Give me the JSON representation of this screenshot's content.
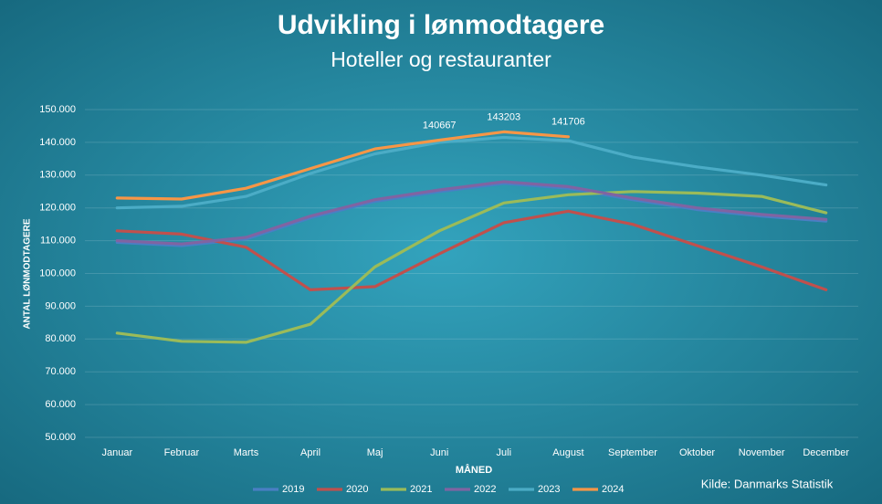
{
  "chart_data": {
    "type": "line",
    "title": "Udvikling i lønmodtagere",
    "subtitle": "Hoteller og restauranter",
    "x_label": "MÅNED",
    "y_label": "ANTAL LØNMODTAGERE",
    "source": "Kilde: Danmarks Statistik",
    "categories": [
      "Januar",
      "Februar",
      "Marts",
      "April",
      "Maj",
      "Juni",
      "Juli",
      "August",
      "September",
      "Oktober",
      "November",
      "December"
    ],
    "series": [
      {
        "name": "2019",
        "color": "#4a7fc4",
        "values": [
          109500,
          108500,
          110500,
          117000,
          122000,
          125000,
          127500,
          126000,
          122500,
          119500,
          117500,
          116000
        ]
      },
      {
        "name": "2020",
        "color": "#c0504d",
        "values": [
          113000,
          112000,
          108000,
          95000,
          96000,
          106000,
          115500,
          119000,
          115000,
          108500,
          102000,
          95000
        ]
      },
      {
        "name": "2021",
        "color": "#9bbb59",
        "values": [
          81800,
          79300,
          79000,
          84500,
          102000,
          113000,
          121500,
          124000,
          125000,
          124500,
          123500,
          118500
        ]
      },
      {
        "name": "2022",
        "color": "#8064a2",
        "values": [
          110000,
          109000,
          111000,
          117500,
          122500,
          125500,
          128000,
          126500,
          123000,
          120000,
          118000,
          116500
        ]
      },
      {
        "name": "2023",
        "color": "#4bacc6",
        "values": [
          120000,
          120500,
          123500,
          130500,
          136500,
          140000,
          141500,
          140500,
          135500,
          132500,
          130000,
          127000
        ]
      },
      {
        "name": "2024",
        "color": "#f79646",
        "values": [
          123000,
          122700,
          126000,
          132000,
          138000,
          140667,
          143203,
          141706,
          null,
          null,
          null,
          null
        ],
        "value_labels": [
          null,
          null,
          null,
          null,
          null,
          "140667",
          "143203",
          "141706",
          null,
          null,
          null,
          null
        ]
      }
    ],
    "ylim": [
      50000,
      150000
    ],
    "yticks": [
      {
        "value": 50000,
        "label": "50.000"
      },
      {
        "value": 60000,
        "label": "60.000"
      },
      {
        "value": 70000,
        "label": "70.000"
      },
      {
        "value": 80000,
        "label": "80.000"
      },
      {
        "value": 90000,
        "label": "90.000"
      },
      {
        "value": 100000,
        "label": "100.000"
      },
      {
        "value": 110000,
        "label": "110.000"
      },
      {
        "value": 120000,
        "label": "120.000"
      },
      {
        "value": 130000,
        "label": "130.000"
      },
      {
        "value": 140000,
        "label": "140.000"
      },
      {
        "value": 150000,
        "label": "150.000"
      }
    ],
    "grid": true,
    "legend": "bottom"
  }
}
